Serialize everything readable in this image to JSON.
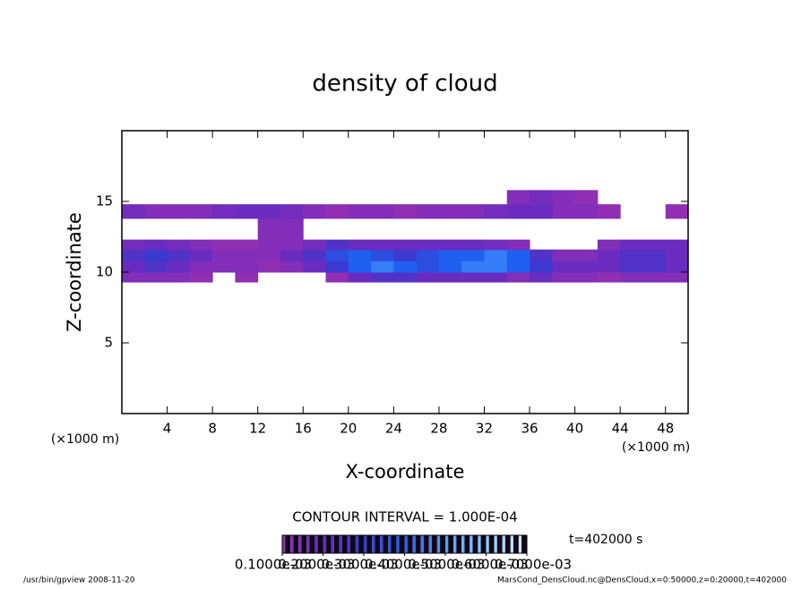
{
  "chart_data": {
    "type": "heatmap",
    "title": "density of cloud",
    "x_label": "X-coordinate",
    "y_label": "Z-coordinate",
    "x_unit": "(×1000 m)",
    "y_unit": "(×1000 m)",
    "xlim": [
      0,
      50
    ],
    "xticks": [
      4,
      8,
      12,
      16,
      20,
      24,
      28,
      32,
      36,
      40,
      44,
      48
    ],
    "ylim": [
      0,
      20
    ],
    "yticks": [
      5,
      10,
      15
    ],
    "x_bins": [
      0,
      2,
      4,
      6,
      8,
      10,
      12,
      14,
      16,
      18,
      20,
      22,
      24,
      26,
      28,
      30,
      32,
      34,
      36,
      38,
      40,
      42,
      44,
      46,
      48,
      50
    ],
    "z_bins": [
      9.3,
      10,
      10.8,
      11.6,
      12.3,
      13.8,
      14.8,
      15.8
    ],
    "values": [
      [
        0.00015,
        0.00015,
        0.00015,
        0.00012,
        null,
        0.00012,
        null,
        null,
        null,
        0.00012,
        0.0002,
        0.00025,
        0.00025,
        0.0002,
        0.0002,
        0.0002,
        0.0002,
        0.00015,
        0.0002,
        0.00015,
        0.00015,
        0.00012,
        0.00015,
        0.00015,
        0.00015
      ],
      [
        0.0002,
        0.00025,
        0.0002,
        0.00015,
        0.00015,
        0.00015,
        0.00012,
        0.00015,
        0.0002,
        0.0003,
        0.0004,
        0.00045,
        0.0004,
        0.00035,
        0.0004,
        0.00045,
        0.00045,
        0.0004,
        0.0003,
        0.0002,
        0.0002,
        0.0002,
        0.00025,
        0.00025,
        0.0002
      ],
      [
        0.00025,
        0.0003,
        0.00025,
        0.0002,
        0.00015,
        0.00015,
        0.00015,
        0.0002,
        0.00025,
        0.00035,
        0.0004,
        0.00035,
        0.0003,
        0.00035,
        0.0004,
        0.0004,
        0.00045,
        0.0004,
        0.00025,
        0.00015,
        0.00015,
        0.0002,
        0.00025,
        0.00025,
        0.0002
      ],
      [
        0.00018,
        0.0002,
        0.00018,
        0.00015,
        0.00012,
        0.00012,
        0.00015,
        0.00015,
        0.00018,
        0.00025,
        0.0002,
        0.0002,
        0.0002,
        0.0002,
        0.0002,
        0.0002,
        0.00018,
        0.00015,
        null,
        null,
        null,
        0.00015,
        0.0002,
        0.0002,
        0.0002
      ],
      [
        null,
        null,
        null,
        null,
        null,
        null,
        0.00015,
        0.00015,
        null,
        null,
        null,
        null,
        null,
        null,
        null,
        null,
        null,
        null,
        null,
        null,
        null,
        null,
        null,
        null,
        null
      ],
      [
        0.00018,
        0.00015,
        0.00015,
        0.00015,
        0.00018,
        0.0002,
        0.0002,
        0.00018,
        0.00015,
        0.00012,
        0.00015,
        0.00015,
        0.00012,
        0.00015,
        0.00015,
        0.00015,
        0.00018,
        0.0002,
        0.0002,
        0.00015,
        0.00015,
        0.00012,
        null,
        null,
        0.00012
      ],
      [
        null,
        null,
        null,
        null,
        null,
        null,
        null,
        null,
        null,
        null,
        null,
        null,
        null,
        null,
        null,
        null,
        null,
        0.00015,
        0.00018,
        0.00015,
        0.00012,
        null,
        null,
        null,
        null
      ]
    ],
    "colormap": [
      "#9a30b0",
      "#6a2cc0",
      "#3a3ad0",
      "#2060f0",
      "#4a98ff",
      "#90c8ff",
      "#d0e8ff"
    ],
    "contour_interval": "CONTOUR INTERVAL = 1.000E-04",
    "time_label": "t=402000 s",
    "colorbar_ticks": [
      {
        "value": 0.0001,
        "label": "0.1000e-03"
      },
      {
        "value": 0.0002,
        "label": "0.2000e-03"
      },
      {
        "value": 0.0003,
        "label": "0.3000e-03"
      },
      {
        "value": 0.0004,
        "label": "0.4000e-03"
      },
      {
        "value": 0.0005,
        "label": "0.5000e-03"
      },
      {
        "value": 0.0006,
        "label": "0.6000e-03"
      },
      {
        "value": 0.0007,
        "label": "0.7000e-03"
      }
    ],
    "footer_left": "/usr/bin/gpview  2008-11-20",
    "footer_right": "MarsCond_DensCloud.nc@DensCloud,x=0:50000,z=0:20000,t=402000"
  }
}
